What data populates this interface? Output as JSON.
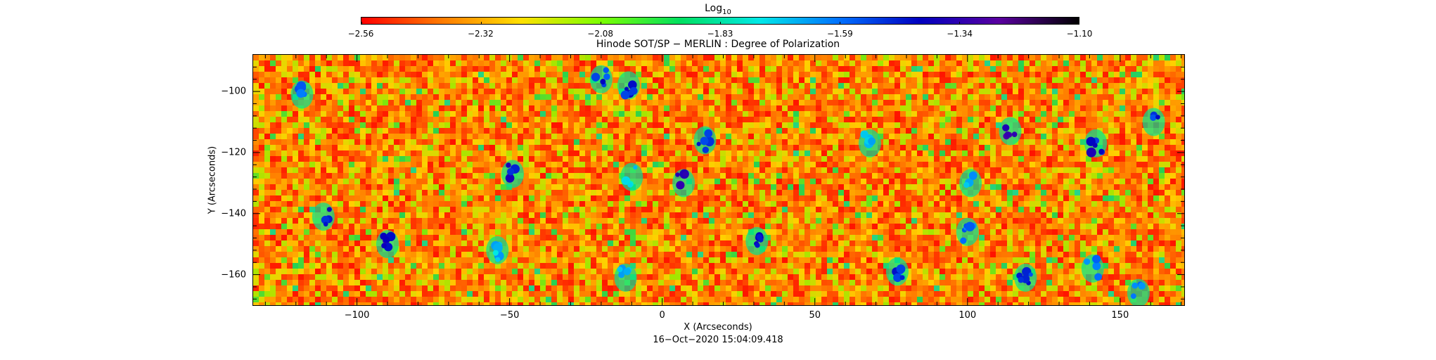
{
  "colorbar": {
    "title_main": "Log",
    "title_sub": "10",
    "tick_labels": [
      "−2.56",
      "−2.32",
      "−2.08",
      "−1.83",
      "−1.59",
      "−1.34",
      "−1.10"
    ],
    "colors": [
      "#ff0000",
      "#ff7a00",
      "#ffe000",
      "#7cff00",
      "#00e060",
      "#00e8e8",
      "#0070ff",
      "#0000c0",
      "#5a00a0",
      "#000000"
    ]
  },
  "chart_data": {
    "type": "heatmap",
    "title": "Hinode SOT/SP − MERLIN : Degree of Polarization",
    "xlabel": "X (Arcseconds)",
    "ylabel": "Y (Arcseconds)",
    "xlim": [
      -134,
      171
    ],
    "ylim": [
      -170,
      -88
    ],
    "x_ticks": [
      -100,
      -50,
      0,
      50,
      100,
      150
    ],
    "x_tick_labels": [
      "−100",
      "−50",
      "0",
      "50",
      "100",
      "150"
    ],
    "y_ticks": [
      -100,
      -120,
      -140,
      -160
    ],
    "y_tick_labels": [
      "−100",
      "−120",
      "−140",
      "−160"
    ],
    "value_range": [
      -2.56,
      -1.1
    ],
    "value_scale": "log10",
    "background_level": -2.4,
    "features": [
      {
        "x": -111,
        "y": -141,
        "level": -1.45
      },
      {
        "x": -118,
        "y": -101,
        "level": -1.6
      },
      {
        "x": -90,
        "y": -150,
        "level": -1.4
      },
      {
        "x": -49,
        "y": -127,
        "level": -1.45
      },
      {
        "x": -20,
        "y": -96,
        "level": -1.5
      },
      {
        "x": -11,
        "y": -98,
        "level": -1.45
      },
      {
        "x": 7,
        "y": -130,
        "level": -1.4
      },
      {
        "x": 14,
        "y": -116,
        "level": -1.5
      },
      {
        "x": 31,
        "y": -149,
        "level": -1.4
      },
      {
        "x": -10,
        "y": -128,
        "level": -1.7
      },
      {
        "x": 114,
        "y": -113,
        "level": -1.3
      },
      {
        "x": 142,
        "y": -117,
        "level": -1.45
      },
      {
        "x": 161,
        "y": -110,
        "level": -1.5
      },
      {
        "x": 77,
        "y": -159,
        "level": -1.5
      },
      {
        "x": 119,
        "y": -161,
        "level": -1.5
      },
      {
        "x": 141,
        "y": -158,
        "level": -1.6
      },
      {
        "x": -12,
        "y": -161,
        "level": -1.7
      },
      {
        "x": -54,
        "y": -152,
        "level": -1.7
      },
      {
        "x": 101,
        "y": -130,
        "level": -1.7
      },
      {
        "x": 68,
        "y": -117,
        "level": -1.7
      },
      {
        "x": 100,
        "y": -146,
        "level": -1.6
      },
      {
        "x": 156,
        "y": -166,
        "level": -1.6
      }
    ]
  },
  "footer": {
    "date": "16−Oct−2020 15:04:09.418"
  }
}
